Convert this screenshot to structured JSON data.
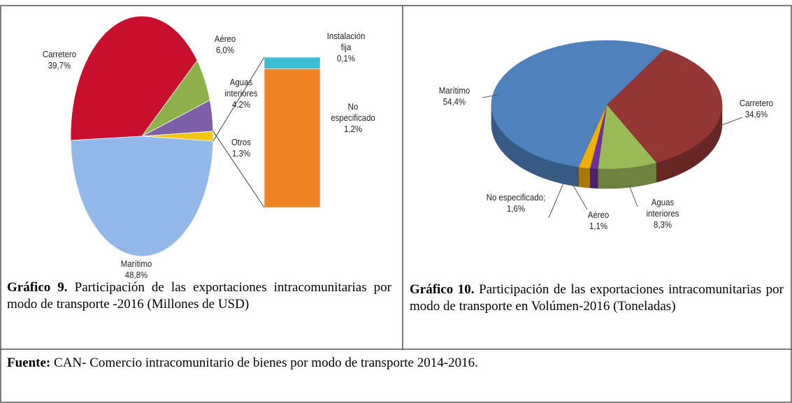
{
  "chart_data": [
    {
      "type": "bar_of_pie",
      "categories": [
        "Carretero",
        "Aéreo",
        "Aguas interiores",
        "Otros",
        "Marítimo"
      ],
      "values": [
        39.7,
        6.0,
        4.2,
        1.3,
        48.8
      ],
      "value_labels": [
        "39,7%",
        "6,0%",
        "4,2%",
        "1,3%",
        "48,8%"
      ],
      "colors": [
        "#c8102e",
        "#8db04a",
        "#7d5fa8",
        "#f3c614",
        "#92b9ea"
      ],
      "bar_of": 3,
      "bar_categories": [
        "Instalación fija",
        "No especificado"
      ],
      "bar_values": [
        0.1,
        1.2
      ],
      "bar_value_labels": [
        "0,1%",
        "1,2%"
      ],
      "bar_colors": [
        "#3cbfd2",
        "#f08424"
      ],
      "caption_label": "Gráfico 9.",
      "caption": "Participación de las exportaciones intracomunitarias por modo de transporte -2016 (Millones de USD)"
    },
    {
      "type": "pie3d",
      "categories": [
        "Carretero",
        "Aguas interiores",
        "Aéreo",
        "No especificado;",
        "Marítimo"
      ],
      "values": [
        34.6,
        8.3,
        1.1,
        1.6,
        54.4
      ],
      "value_labels": [
        "34,6%",
        "8,3%",
        "1,1%",
        "1,6%",
        "54,4%"
      ],
      "colors": [
        "#943634",
        "#9bbb59",
        "#7030a0",
        "#f0b000",
        "#4f81bd"
      ],
      "caption_label": "Gráfico 10.",
      "caption": "Participación de las exportaciones intracomunitarias por modo de transporte en Volúmen-2016 (Toneladas)"
    }
  ],
  "source": {
    "label": "Fuente:",
    "text": "CAN- Comercio intracomunitario de bienes por modo de transporte 2014-2016."
  }
}
